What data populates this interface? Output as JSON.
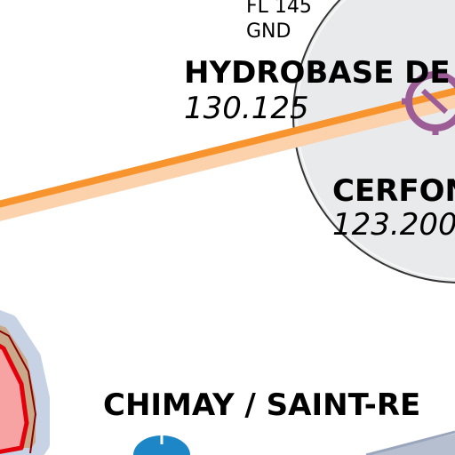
{
  "airspace": {
    "upper_limit": "FL 145",
    "lower_limit": "GND"
  },
  "places": [
    {
      "name": "HYDROBASE DE",
      "frequency": "130.125"
    },
    {
      "name": "CERFON",
      "frequency": "123.200"
    },
    {
      "name": "CHIMAY / SAINT-RE"
    }
  ],
  "colors": {
    "route_line": "#f7942e",
    "route_halo": "#fcd2ac",
    "circle_fill": "#e9eaec",
    "circle_stroke": "#333333",
    "vor_symbol": "#9c5c96",
    "restricted_fill": "#f7a3a3",
    "restricted_stroke": "#e3000b",
    "restricted_halo": "#c9a98a",
    "halo_blue": "#c7d3e4",
    "airport_symbol": "#1c86c6",
    "airway": "#b5bfd0"
  },
  "icons": [
    "vor-symbol",
    "airport-symbol"
  ]
}
